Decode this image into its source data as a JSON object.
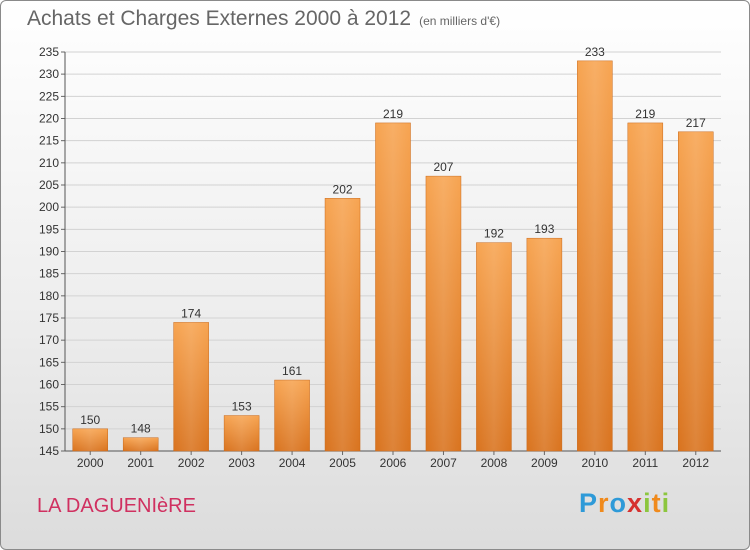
{
  "header": {
    "title": "Achats et Charges Externes 2000 à 2012",
    "subtitle": "(en milliers d'€)"
  },
  "footer": {
    "commune": "LA DAGUENIèRE",
    "logo_letters": [
      "P",
      "r",
      "o",
      "x",
      "i",
      "t",
      "i"
    ],
    "logo_colors": [
      "#2e9ad8",
      "#f08a1c",
      "#2e9ad8",
      "#d6312f",
      "#8cc63e",
      "#f08a1c",
      "#8cc63e"
    ]
  },
  "chart_data": {
    "type": "bar",
    "title": "Achats et Charges Externes 2000 à 2012",
    "subtitle": "(en milliers d'€)",
    "categories": [
      "2000",
      "2001",
      "2002",
      "2003",
      "2004",
      "2005",
      "2006",
      "2007",
      "2008",
      "2009",
      "2010",
      "2011",
      "2012"
    ],
    "values": [
      150,
      148,
      174,
      153,
      161,
      202,
      219,
      207,
      192,
      193,
      233,
      219,
      217
    ],
    "ylim": [
      145,
      235
    ],
    "ytick_step": 5,
    "grid": "horizontal",
    "bar_color": "#f39a3c"
  }
}
